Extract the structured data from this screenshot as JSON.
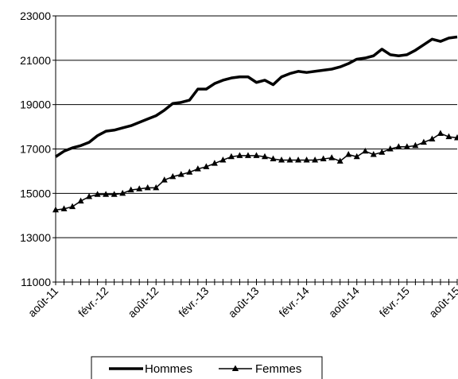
{
  "chart_data": {
    "type": "line",
    "y_ticks": [
      "11000",
      "13000",
      "15000",
      "17000",
      "19000",
      "21000",
      "23000"
    ],
    "ylim": [
      11000,
      23000
    ],
    "x_tick_labels": [
      "août-11",
      "févr.-12",
      "août-12",
      "févr.-13",
      "août-13",
      "févr.-14",
      "août-14",
      "févr.-15",
      "août-15"
    ],
    "x": [
      "2011-08",
      "2011-09",
      "2011-10",
      "2011-11",
      "2011-12",
      "2012-01",
      "2012-02",
      "2012-03",
      "2012-04",
      "2012-05",
      "2012-06",
      "2012-07",
      "2012-08",
      "2012-09",
      "2012-10",
      "2012-11",
      "2012-12",
      "2013-01",
      "2013-02",
      "2013-03",
      "2013-04",
      "2013-05",
      "2013-06",
      "2013-07",
      "2013-08",
      "2013-09",
      "2013-10",
      "2013-11",
      "2013-12",
      "2014-01",
      "2014-02",
      "2014-03",
      "2014-04",
      "2014-05",
      "2014-06",
      "2014-07",
      "2014-08",
      "2014-09",
      "2014-10",
      "2014-11",
      "2014-12",
      "2015-01",
      "2015-02",
      "2015-03",
      "2015-04",
      "2015-05",
      "2015-06",
      "2015-07",
      "2015-08"
    ],
    "grid": "horizontal",
    "legend_position": "bottom",
    "series": [
      {
        "name": "Hommes",
        "marker": "none",
        "color": "#000000",
        "values": [
          16650,
          16900,
          17050,
          17150,
          17300,
          17600,
          17800,
          17850,
          17950,
          18050,
          18200,
          18350,
          18500,
          18750,
          19050,
          19100,
          19200,
          19700,
          19700,
          19950,
          20100,
          20200,
          20250,
          20250,
          20000,
          20100,
          19900,
          20250,
          20400,
          20500,
          20450,
          20500,
          20550,
          20600,
          20700,
          20850,
          21050,
          21100,
          21200,
          21500,
          21250,
          21200,
          21250,
          21450,
          21700,
          21950,
          21850,
          22000,
          22050
        ]
      },
      {
        "name": "Femmes",
        "marker": "triangle",
        "color": "#000000",
        "values": [
          14250,
          14300,
          14400,
          14650,
          14850,
          14950,
          14950,
          14950,
          15000,
          15150,
          15200,
          15250,
          15250,
          15600,
          15750,
          15850,
          15950,
          16100,
          16200,
          16350,
          16500,
          16650,
          16700,
          16700,
          16700,
          16650,
          16550,
          16500,
          16500,
          16500,
          16500,
          16500,
          16550,
          16600,
          16450,
          16750,
          16650,
          16900,
          16750,
          16850,
          17000,
          17100,
          17100,
          17150,
          17300,
          17450,
          17700,
          17550,
          17500
        ]
      }
    ]
  }
}
